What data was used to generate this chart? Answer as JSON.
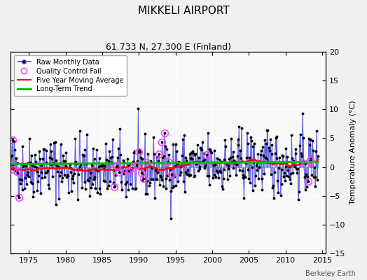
{
  "title": "MIKKELI AIRPORT",
  "subtitle": "61.733 N, 27.300 E (Finland)",
  "ylabel": "Temperature Anomaly (°C)",
  "watermark": "Berkeley Earth",
  "xlim": [
    1972.5,
    2015.5
  ],
  "ylim": [
    -15,
    20
  ],
  "yticks": [
    -15,
    -10,
    -5,
    0,
    5,
    10,
    15,
    20
  ],
  "xticks": [
    1975,
    1980,
    1985,
    1990,
    1995,
    2000,
    2005,
    2010,
    2015
  ],
  "bg_color": "#f0f0f0",
  "plot_bg_color": "#f8f8f8",
  "raw_line_color": "#5555dd",
  "raw_dot_color": "#000000",
  "qc_fail_color": "#ff44ff",
  "moving_avg_color": "#ff0000",
  "trend_color": "#00bb00",
  "seed": 42,
  "start_year": 1972.5,
  "n_months": 504
}
